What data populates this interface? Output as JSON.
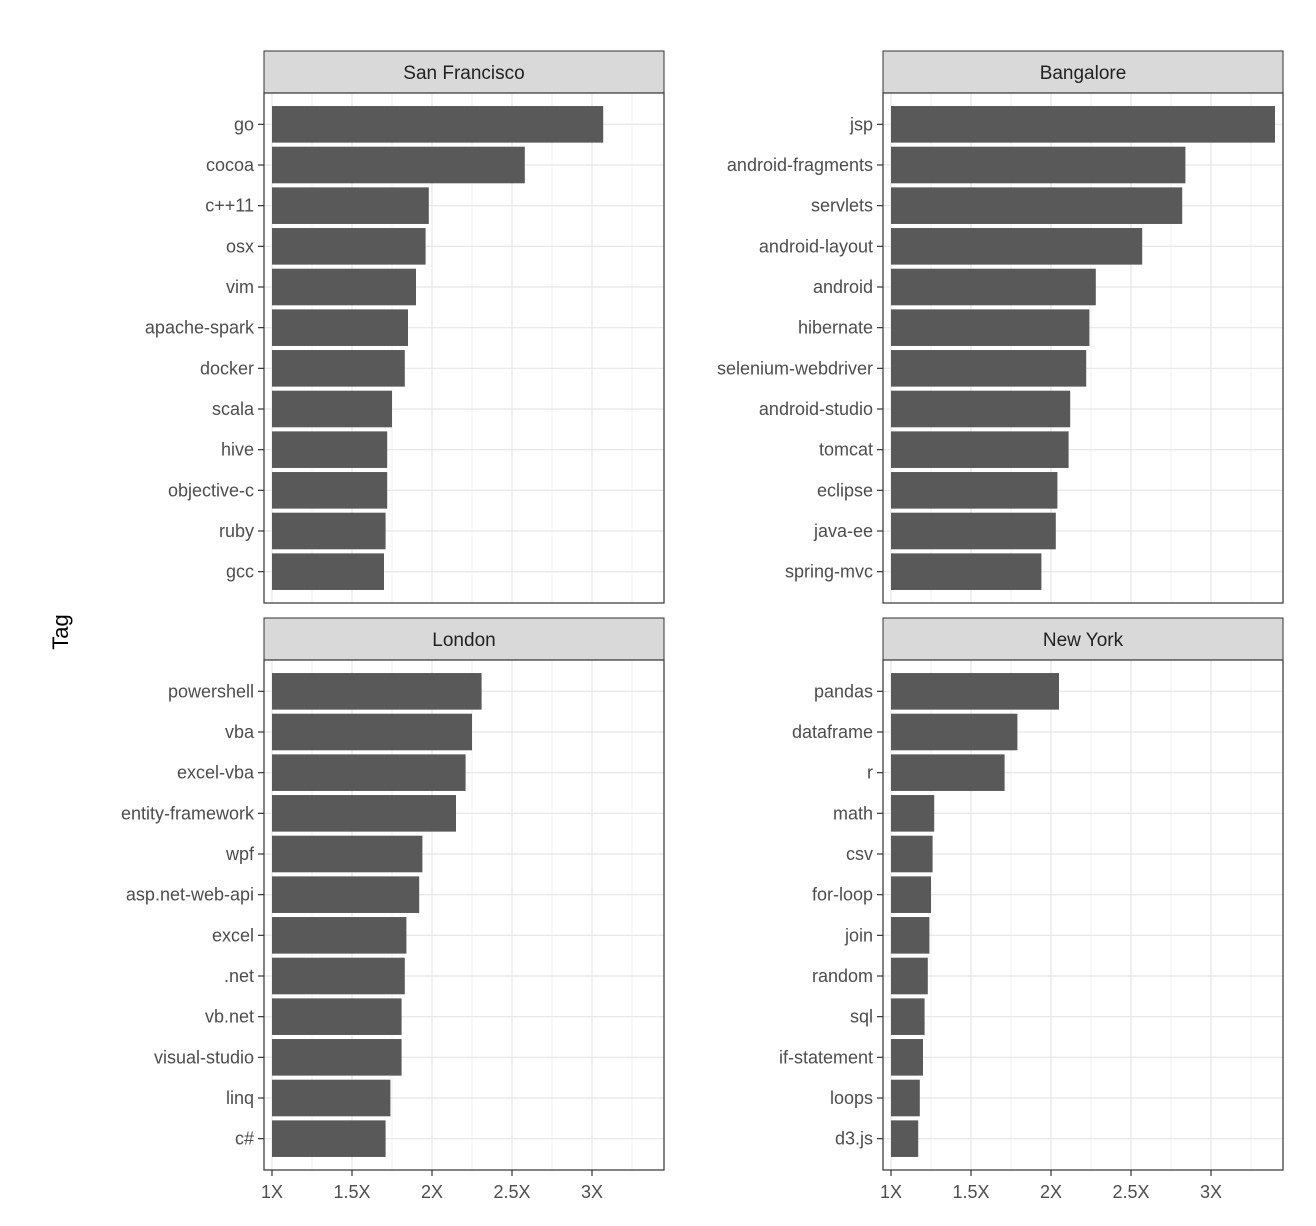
{
  "chart_data": {
    "type": "bar",
    "orientation": "horizontal",
    "ylabel": "Tag",
    "xlabel": "",
    "x_ticks": [
      "1X",
      "1.5X",
      "2X",
      "2.5X",
      "3X"
    ],
    "x_tick_values": [
      1,
      1.5,
      2,
      2.5,
      3
    ],
    "xlim": [
      0.95,
      3.45
    ],
    "grid": true,
    "bar_color": "#595959",
    "panels": [
      {
        "title": "San Francisco",
        "categories": [
          "go",
          "cocoa",
          "c++11",
          "osx",
          "vim",
          "apache-spark",
          "docker",
          "scala",
          "hive",
          "objective-c",
          "ruby",
          "gcc"
        ],
        "values": [
          3.07,
          2.58,
          1.98,
          1.96,
          1.9,
          1.85,
          1.83,
          1.75,
          1.72,
          1.72,
          1.71,
          1.7
        ]
      },
      {
        "title": "Bangalore",
        "categories": [
          "jsp",
          "android-fragments",
          "servlets",
          "android-layout",
          "android",
          "hibernate",
          "selenium-webdriver",
          "android-studio",
          "tomcat",
          "eclipse",
          "java-ee",
          "spring-mvc"
        ],
        "values": [
          3.4,
          2.84,
          2.82,
          2.57,
          2.28,
          2.24,
          2.22,
          2.12,
          2.11,
          2.04,
          2.03,
          1.94
        ]
      },
      {
        "title": "London",
        "categories": [
          "powershell",
          "vba",
          "excel-vba",
          "entity-framework",
          "wpf",
          "asp.net-web-api",
          "excel",
          ".net",
          "vb.net",
          "visual-studio",
          "linq",
          "c#"
        ],
        "values": [
          2.31,
          2.25,
          2.21,
          2.15,
          1.94,
          1.92,
          1.84,
          1.83,
          1.81,
          1.81,
          1.74,
          1.71
        ]
      },
      {
        "title": "New York",
        "categories": [
          "pandas",
          "dataframe",
          "r",
          "math",
          "csv",
          "for-loop",
          "join",
          "random",
          "sql",
          "if-statement",
          "loops",
          "d3.js"
        ],
        "values": [
          2.05,
          1.79,
          1.71,
          1.27,
          1.26,
          1.25,
          1.24,
          1.23,
          1.21,
          1.2,
          1.18,
          1.17
        ]
      }
    ]
  }
}
